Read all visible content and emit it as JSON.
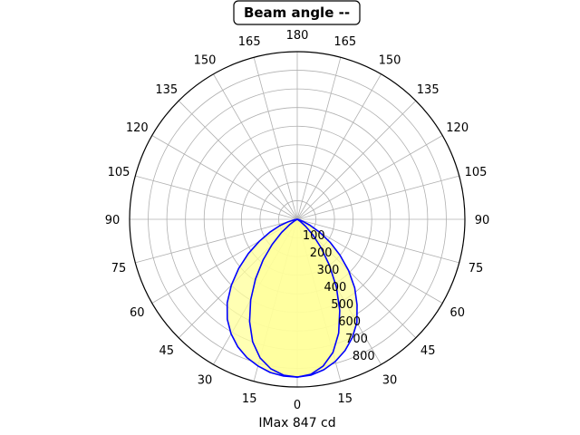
{
  "chart_data": {
    "type": "polar-line",
    "title": "Beam angle --",
    "xlabel": "IMax 847 cd",
    "angular_tick_labels": [
      "0",
      "15",
      "30",
      "45",
      "60",
      "75",
      "90",
      "105",
      "120",
      "135",
      "150",
      "165",
      "180",
      "165",
      "150",
      "135",
      "120",
      "105",
      "90",
      "75",
      "60",
      "45",
      "30",
      "15"
    ],
    "radial_tick_labels": [
      "100",
      "200",
      "300",
      "400",
      "500",
      "600",
      "700",
      "800"
    ],
    "radial_ticks": [
      100,
      200,
      300,
      400,
      500,
      600,
      700,
      800
    ],
    "rlim": [
      0,
      900
    ],
    "grid": true,
    "fill_color": "#ffff99",
    "line_color": "#0000ff",
    "series": [
      {
        "theta_deg": [
          0,
          5,
          10,
          15,
          20,
          25,
          30,
          35,
          40,
          45,
          50,
          55,
          60,
          65,
          70,
          75,
          80,
          85,
          90
        ],
        "right": [
          847,
          840,
          820,
          790,
          750,
          700,
          640,
          560,
          480,
          390,
          300,
          215,
          140,
          75,
          30,
          8,
          0,
          0,
          0
        ],
        "left": [
          847,
          845,
          835,
          815,
          790,
          755,
          710,
          655,
          585,
          500,
          410,
          320,
          235,
          160,
          100,
          50,
          15,
          0,
          0
        ]
      },
      {
        "theta_deg": [
          0,
          5,
          10,
          15,
          20,
          25,
          30,
          35,
          40,
          45,
          50,
          55,
          60,
          65,
          70,
          75,
          80,
          85,
          90
        ],
        "right": [
          847,
          835,
          800,
          740,
          650,
          540,
          420,
          300,
          200,
          120,
          60,
          20,
          0,
          0,
          0,
          0,
          0,
          0,
          0
        ],
        "left": [
          847,
          840,
          815,
          770,
          700,
          605,
          500,
          390,
          285,
          190,
          110,
          50,
          15,
          0,
          0,
          0,
          0,
          0,
          0
        ]
      }
    ]
  }
}
